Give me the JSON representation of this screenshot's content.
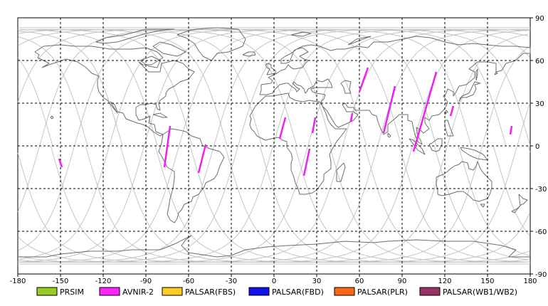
{
  "map": {
    "lon_range": [
      -180,
      180
    ],
    "lat_range": [
      -90,
      90
    ],
    "x_ticks": [
      "-180",
      "-150",
      "-120",
      "-90",
      "-60",
      "-30",
      "0",
      "30",
      "60",
      "90",
      "120",
      "150",
      "180"
    ],
    "x_tick_values": [
      -180,
      -150,
      -120,
      -90,
      -60,
      -30,
      0,
      30,
      60,
      90,
      120,
      150,
      180
    ],
    "y_ticks": [
      "90",
      "60",
      "30",
      "0",
      "-30",
      "-60",
      "-90"
    ],
    "y_tick_values": [
      90,
      60,
      30,
      0,
      -30,
      -60,
      -90
    ],
    "grid": "dashed",
    "colors": {
      "coast": "#6e6e6e",
      "orbit": "#c4c4c4",
      "grid": "#000000",
      "swath": "#ee22ee"
    }
  },
  "legend": [
    {
      "label": "PRSIM",
      "color": "#99cc22"
    },
    {
      "label": "AVNIR-2",
      "color": "#ff22ff"
    },
    {
      "label": "PALSAR(FBS)",
      "color": "#ffcc22"
    },
    {
      "label": "PALSAR(FBD)",
      "color": "#1111ee"
    },
    {
      "label": "PALSAR(PLR)",
      "color": "#ff6611"
    },
    {
      "label": "PALSAR(WB1/WB2)",
      "color": "#993366"
    }
  ],
  "swaths": [
    {
      "lon1": -151,
      "lat1": -9,
      "lon2": -149,
      "lat2": -15
    },
    {
      "lon1": -73,
      "lat1": 14,
      "lon2": -77,
      "lat2": -15
    },
    {
      "lon1": -48,
      "lat1": 1,
      "lon2": -53,
      "lat2": -19
    },
    {
      "lon1": 8,
      "lat1": 20,
      "lon2": 4,
      "lat2": 5
    },
    {
      "lon1": 29,
      "lat1": 20,
      "lon2": 27,
      "lat2": 9
    },
    {
      "lon1": 25,
      "lat1": -2,
      "lon2": 21,
      "lat2": -21
    },
    {
      "lon1": 55,
      "lat1": 23,
      "lon2": 54,
      "lat2": 17
    },
    {
      "lon1": 66,
      "lat1": 55,
      "lon2": 60,
      "lat2": 38
    },
    {
      "lon1": 85,
      "lat1": 42,
      "lon2": 77,
      "lat2": 9
    },
    {
      "lon1": 114,
      "lat1": 52,
      "lon2": 98,
      "lat2": -4
    },
    {
      "lon1": 126,
      "lat1": 28,
      "lon2": 124,
      "lat2": 21
    },
    {
      "lon1": 167,
      "lat1": 14,
      "lon2": 166,
      "lat2": 8
    }
  ]
}
